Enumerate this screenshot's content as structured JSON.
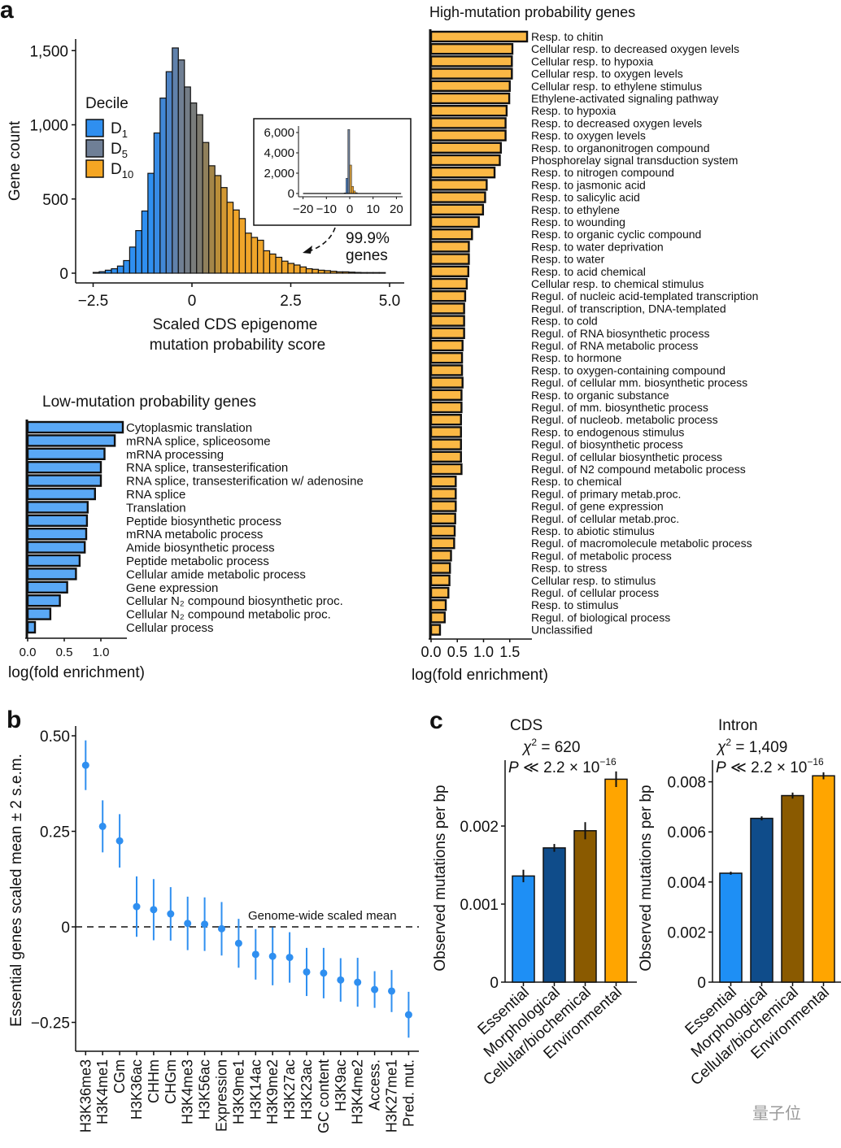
{
  "panel_labels": {
    "a": "a",
    "b": "b",
    "c": "c"
  },
  "watermark": "量子位",
  "chart_data": [
    {
      "type": "bar",
      "kind": "histogram",
      "xlabel_lines": [
        "Scaled CDS epigenome",
        "mutation probability score"
      ],
      "ylabel": "Gene count",
      "xlim": [
        -2.7,
        5.2
      ],
      "ylim": [
        0,
        1600
      ],
      "xticks": [
        "−2.5",
        "0",
        "2.5",
        "5.0"
      ],
      "xtick_values": [
        -2.5,
        0,
        2.5,
        5.0
      ],
      "yticks": [
        "0",
        "500",
        "1,000",
        "1,500"
      ],
      "ytick_values": [
        0,
        500,
        1000,
        1500
      ],
      "bin_start": -2.5,
      "bin_width": 0.154,
      "counts": [
        5,
        10,
        20,
        30,
        48,
        85,
        176,
        287,
        419,
        673,
        945,
        1180,
        1358,
        1518,
        1437,
        1255,
        1147,
        1068,
        881,
        724,
        658,
        577,
        478,
        426,
        368,
        270,
        241,
        222,
        151,
        129,
        107,
        81,
        66,
        55,
        42,
        30,
        26,
        20,
        17,
        13,
        9,
        9,
        7,
        5,
        4,
        4,
        4,
        4
      ],
      "legend": {
        "title": "Decile",
        "placement": "left",
        "entries": [
          {
            "base": "D",
            "sub": "1",
            "color": "#2f8ff0"
          },
          {
            "base": "D",
            "sub": "5",
            "color": "#6f7f96"
          },
          {
            "base": "D",
            "sub": "10",
            "color": "#f5a623"
          }
        ]
      },
      "annotation_lines": [
        "99.9%",
        "genes"
      ],
      "inset": {
        "xticks": [
          "−20",
          "−10",
          "0",
          "10",
          "20"
        ],
        "xtick_values": [
          -20,
          -10,
          0,
          10,
          20
        ],
        "yticks": [
          "0",
          "2,000",
          "4,000",
          "6,000"
        ],
        "ytick_values": [
          0,
          2000,
          4000,
          6000
        ],
        "xlim": [
          -21,
          23
        ],
        "ylim": [
          0,
          6600
        ],
        "bin_start": -2.4,
        "bin_width": 0.8,
        "counts": [
          60,
          1500,
          6300,
          2800,
          700,
          250,
          80
        ],
        "colors": [
          "#2f8ff0",
          "#4a83c9",
          "#6f7f96",
          "#d9a03a",
          "#f5a623",
          "#f5a623",
          "#f5a623"
        ],
        "range": [
          -20,
          22
        ]
      }
    },
    {
      "type": "bar",
      "orientation": "horizontal",
      "title": "Low-mutation probability genes",
      "xlabel": "log(fold enrichment)",
      "xlim": [
        0,
        1.35
      ],
      "xticks": [
        "0.0",
        "0.5",
        "1.0"
      ],
      "xtick_values": [
        0,
        0.5,
        1.0
      ],
      "color": "#5aa8f5",
      "categories": [
        "Cytoplasmic translation",
        "mRNA splice, spliceosome",
        "mRNA processing",
        "RNA splice, transesterification",
        "RNA splice, transesterification w/ adenosine",
        "RNA splice",
        "Translation",
        "Peptide biosynthetic process",
        "mRNA metabolic process",
        "Amide biosynthetic process",
        "Peptide metabolic process",
        "Cellular amide metabolic process",
        "Gene expression",
        "Cellular N₂ compound biosynthetic proc.",
        "Cellular N₂ compound metabolic proc.",
        "Cellular process"
      ],
      "values": [
        1.3,
        1.19,
        1.05,
        1.0,
        1.0,
        0.92,
        0.82,
        0.81,
        0.8,
        0.78,
        0.71,
        0.66,
        0.54,
        0.44,
        0.31,
        0.1
      ]
    },
    {
      "type": "bar",
      "orientation": "horizontal",
      "title": "High-mutation probability genes",
      "xlabel": "log(fold enrichment)",
      "xlim": [
        0,
        1.9
      ],
      "xticks": [
        "0.0",
        "0.5",
        "1.0",
        "1.5"
      ],
      "xtick_values": [
        0,
        0.5,
        1.0,
        1.5
      ],
      "color": "#fbb845",
      "categories": [
        "Resp. to chitin",
        "Cellular resp. to decreased oxygen levels",
        "Cellular resp. to hypoxia",
        "Cellular resp. to oxygen levels",
        "Cellular resp. to ethylene stimulus",
        "Ethylene-activated signaling pathway",
        "Resp. to hypoxia",
        "Resp. to decreased oxygen levels",
        "Resp. to oxygen levels",
        "Resp. to organonitrogen compound",
        "Phosphorelay signal transduction system",
        "Resp. to nitrogen compound",
        "Resp. to jasmonic acid",
        "Resp. to salicylic acid",
        "Resp. to ethylene",
        "Resp. to wounding",
        "Resp. to organic cyclic compound",
        "Resp. to water deprivation",
        "Resp. to water",
        "Resp. to acid chemical",
        "Cellular resp. to chemical stimulus",
        "Regul. of nucleic acid-templated transcription",
        "Regul. of transcription, DNA-templated",
        "Resp. to cold",
        "Regul. of RNA biosynthetic process",
        "Regul. of RNA metabolic process",
        "Resp. to hormone",
        "Resp. to oxygen-containing compound",
        "Regul. of cellular mm. biosynthetic process",
        "Resp. to organic substance",
        "Regul. of mm. biosynthetic process",
        "Regul. of nucleob. metabolic process",
        "Resp. to endogenous stimulus",
        "Regul. of biosynthetic process",
        "Regul. of cellular biosynthetic process",
        "Regul. of N2 compound metabolic process",
        "Resp. to chemical",
        "Regul. of primary metab.proc.",
        "Regul. of gene expression",
        "Regul. of cellular metab.proc.",
        "Resp. to abiotic stimulus",
        "Regul. of macromolecule metabolic process",
        "Regul. of metabolic process",
        "Resp. to stress",
        "Cellular resp. to stimulus",
        "Regul. of cellular process",
        "Resp. to stimulus",
        "Regul. of biological process",
        "Unclassified"
      ],
      "values": [
        1.83,
        1.55,
        1.54,
        1.54,
        1.5,
        1.49,
        1.44,
        1.42,
        1.42,
        1.33,
        1.31,
        1.21,
        1.06,
        1.03,
        0.99,
        0.91,
        0.78,
        0.72,
        0.72,
        0.71,
        0.68,
        0.65,
        0.63,
        0.63,
        0.63,
        0.6,
        0.59,
        0.59,
        0.6,
        0.58,
        0.58,
        0.57,
        0.57,
        0.57,
        0.57,
        0.58,
        0.47,
        0.47,
        0.47,
        0.46,
        0.45,
        0.44,
        0.38,
        0.36,
        0.35,
        0.33,
        0.28,
        0.26,
        0.17
      ]
    },
    {
      "type": "scatter",
      "kind": "errorbar",
      "ylabel": "Essential genes scaled mean ± 2 s.e.m.",
      "ylim": [
        -0.33,
        0.52
      ],
      "yticks": [
        "−0.25",
        "0",
        "0.25",
        "0.50"
      ],
      "ytick_values": [
        -0.25,
        0,
        0.25,
        0.5
      ],
      "reference_line": {
        "value": 0,
        "label": "Genome-wide scaled mean",
        "style": "dashed"
      },
      "color": "#2f8ff0",
      "categories": [
        "H3K36me3",
        "H3K4me1",
        "CGm",
        "H3K36ac",
        "CHHm",
        "CHGm",
        "H3K4me3",
        "H3K56ac",
        "Expression",
        "H3K9me1",
        "H3K14ac",
        "H3K9me2",
        "H3K27ac",
        "H3K23ac",
        "GC content",
        "H3K9ac",
        "H3K4me2",
        "Access.",
        "H3K27me1",
        "Pred. mut."
      ],
      "values": [
        0.423,
        0.263,
        0.225,
        0.053,
        0.045,
        0.034,
        0.009,
        0.007,
        -0.005,
        -0.043,
        -0.072,
        -0.077,
        -0.08,
        -0.118,
        -0.121,
        -0.139,
        -0.145,
        -0.164,
        -0.168,
        -0.23
      ],
      "errors": [
        0.065,
        0.068,
        0.07,
        0.079,
        0.08,
        0.07,
        0.07,
        0.07,
        0.07,
        0.064,
        0.066,
        0.076,
        0.066,
        0.063,
        0.066,
        0.057,
        0.064,
        0.048,
        0.055,
        0.06
      ]
    },
    {
      "type": "bar",
      "title": "CDS",
      "stat": {
        "chi": "χ",
        "sup": "2",
        "rest": " = 620"
      },
      "pvalue": {
        "p": "P",
        "rest": " ≪ 2.2 × 10",
        "exp": "−16"
      },
      "ylabel": "Observed mutations per bp",
      "ylim": [
        0,
        0.0028
      ],
      "yticks": [
        "0",
        "0.001",
        "0.002"
      ],
      "ytick_values": [
        0,
        0.001,
        0.002
      ],
      "categories": [
        "Essential",
        "Morphological",
        "Cellular/biochemical",
        "Environmental"
      ],
      "colors": [
        "#1e8ff5",
        "#0f4c8a",
        "#8a5a00",
        "#ffa500"
      ],
      "values": [
        0.00136,
        0.00172,
        0.00194,
        0.0026
      ],
      "errors": [
        8e-05,
        5e-05,
        0.00011,
        0.0001
      ]
    },
    {
      "type": "bar",
      "title": "Intron",
      "stat": {
        "chi": "χ",
        "sup": "2",
        "rest": " = 1,409"
      },
      "pvalue": {
        "p": "P",
        "rest": " ≪ 2.2 × 10",
        "exp": "−16"
      },
      "ylabel": "Observed mutations per bp",
      "ylim": [
        0,
        0.0088
      ],
      "yticks": [
        "0",
        "0.002",
        "0.004",
        "0.006",
        "0.008"
      ],
      "ytick_values": [
        0,
        0.002,
        0.004,
        0.006,
        0.008
      ],
      "categories": [
        "Essential",
        "Morphological",
        "Cellular/biochemical",
        "Environmental"
      ],
      "colors": [
        "#1e8ff5",
        "#0f4c8a",
        "#8a5a00",
        "#ffa500"
      ],
      "values": [
        0.00435,
        0.00654,
        0.00745,
        0.00824
      ],
      "errors": [
        6e-05,
        8e-05,
        0.00012,
        0.00014
      ]
    }
  ]
}
